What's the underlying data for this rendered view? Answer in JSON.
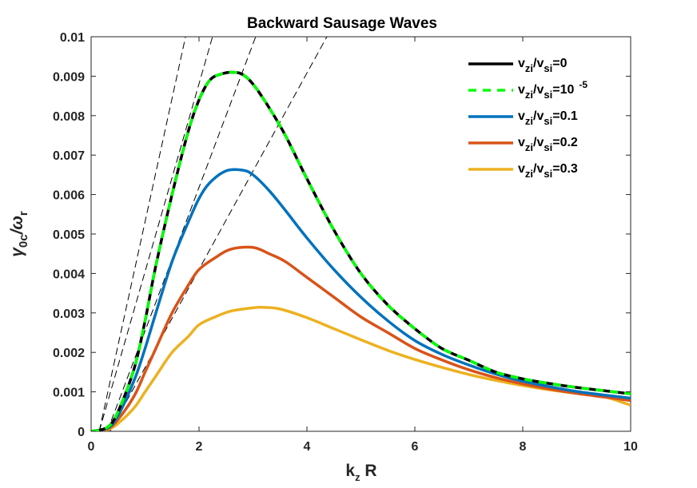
{
  "chart_data": {
    "type": "line",
    "title": "Backward Sausage Waves",
    "xlabel": {
      "main": "k",
      "sub": "z",
      "tail": " R"
    },
    "ylabel": {
      "main": "γ",
      "sub": "0c",
      "mid": "/ω",
      "sub2": "r"
    },
    "xlim": [
      0,
      10
    ],
    "ylim": [
      0,
      0.01
    ],
    "xticks": [
      0,
      2,
      4,
      6,
      8,
      10
    ],
    "xtick_labels": [
      "0",
      "2",
      "4",
      "6",
      "8",
      "10"
    ],
    "yticks": [
      0,
      0.001,
      0.002,
      0.003,
      0.004,
      0.005,
      0.006,
      0.007,
      0.008,
      0.009,
      0.01
    ],
    "ytick_labels": [
      "0",
      "0.001",
      "0.002",
      "0.003",
      "0.004",
      "0.005",
      "0.006",
      "0.007",
      "0.008",
      "0.009",
      "0.01"
    ],
    "grid": false,
    "legend_position": "top-right",
    "series": [
      {
        "name": "v_zi/v_si=0",
        "legend": {
          "a": "v",
          "s1": "zi",
          "b": "/v",
          "s2": "si",
          "c": "=0",
          "sup": ""
        },
        "color": "#000000",
        "style": "solid",
        "x": [
          0,
          0.3,
          0.5,
          0.8,
          1.0,
          1.2,
          1.5,
          1.8,
          2.0,
          2.2,
          2.4,
          2.6,
          2.8,
          3.0,
          3.3,
          3.6,
          4.0,
          4.5,
          5.0,
          5.5,
          6.0,
          6.5,
          7.0,
          7.5,
          8.0,
          8.5,
          9.0,
          9.5,
          10.0
        ],
        "y": [
          0,
          0.0001,
          0.0005,
          0.0016,
          0.0028,
          0.0042,
          0.006,
          0.0076,
          0.0084,
          0.0089,
          0.00905,
          0.0091,
          0.00905,
          0.0088,
          0.0082,
          0.0075,
          0.0064,
          0.0051,
          0.004,
          0.0032,
          0.0026,
          0.0021,
          0.0018,
          0.0015,
          0.00133,
          0.00121,
          0.00111,
          0.00103,
          0.00095
        ]
      },
      {
        "name": "v_zi/v_si=10^-5",
        "legend": {
          "a": "v",
          "s1": "zi",
          "b": "/v",
          "s2": "si",
          "c": "=10",
          "sup": "-5"
        },
        "color": "#00ff00",
        "style": "dashed",
        "x": [
          0,
          0.3,
          0.5,
          0.8,
          1.0,
          1.2,
          1.5,
          1.8,
          2.0,
          2.2,
          2.4,
          2.6,
          2.8,
          3.0,
          3.3,
          3.6,
          4.0,
          4.5,
          5.0,
          5.5,
          6.0,
          6.5,
          7.0,
          7.5,
          8.0,
          8.5,
          9.0,
          9.5,
          10.0
        ],
        "y": [
          0,
          0.0001,
          0.0005,
          0.0016,
          0.0028,
          0.0042,
          0.006,
          0.0076,
          0.0084,
          0.0089,
          0.00905,
          0.0091,
          0.00905,
          0.0088,
          0.0082,
          0.0075,
          0.0064,
          0.0051,
          0.004,
          0.0032,
          0.0026,
          0.0021,
          0.0018,
          0.0015,
          0.00133,
          0.00121,
          0.00111,
          0.00103,
          0.00095
        ]
      },
      {
        "name": "v_zi/v_si=0.1",
        "legend": {
          "a": "v",
          "s1": "zi",
          "b": "/v",
          "s2": "si",
          "c": "=0.1",
          "sup": ""
        },
        "color": "#0072bd",
        "style": "solid",
        "x": [
          0,
          0.3,
          0.5,
          0.8,
          1.0,
          1.2,
          1.5,
          1.8,
          2.0,
          2.2,
          2.5,
          2.8,
          3.0,
          3.3,
          3.6,
          4.0,
          4.5,
          5.0,
          5.5,
          6.0,
          6.5,
          7.0,
          7.5,
          8.0,
          8.5,
          9.0,
          9.5,
          10.0
        ],
        "y": [
          0,
          8e-05,
          0.0004,
          0.0013,
          0.0021,
          0.003,
          0.0043,
          0.0053,
          0.0059,
          0.0063,
          0.0066,
          0.00662,
          0.0065,
          0.0061,
          0.0056,
          0.0049,
          0.0041,
          0.0034,
          0.0028,
          0.0023,
          0.00195,
          0.00168,
          0.00145,
          0.00127,
          0.00113,
          0.00101,
          0.00092,
          0.00084
        ]
      },
      {
        "name": "v_zi/v_si=0.2",
        "legend": {
          "a": "v",
          "s1": "zi",
          "b": "/v",
          "s2": "si",
          "c": "=0.2",
          "sup": ""
        },
        "color": "#d95319",
        "style": "solid",
        "x": [
          0,
          0.3,
          0.5,
          0.8,
          1.0,
          1.2,
          1.5,
          1.8,
          2.0,
          2.3,
          2.6,
          3.0,
          3.3,
          3.6,
          4.0,
          4.5,
          5.0,
          5.5,
          6.0,
          6.5,
          7.0,
          7.5,
          8.0,
          8.5,
          9.0,
          9.5,
          10.0
        ],
        "y": [
          0,
          6e-05,
          0.0003,
          0.0009,
          0.0015,
          0.0021,
          0.003,
          0.0037,
          0.0041,
          0.0044,
          0.00462,
          0.00466,
          0.0045,
          0.0043,
          0.0039,
          0.0034,
          0.0029,
          0.0025,
          0.0021,
          0.00181,
          0.00156,
          0.00136,
          0.0012,
          0.00107,
          0.00096,
          0.00087,
          0.00078
        ]
      },
      {
        "name": "v_zi/v_si=0.3",
        "legend": {
          "a": "v",
          "s1": "zi",
          "b": "/v",
          "s2": "si",
          "c": "=0.3",
          "sup": ""
        },
        "color": "#edb120",
        "style": "solid",
        "x": [
          0,
          0.3,
          0.5,
          0.8,
          1.0,
          1.2,
          1.5,
          1.8,
          2.0,
          2.3,
          2.6,
          3.0,
          3.2,
          3.5,
          4.0,
          4.5,
          5.0,
          5.5,
          6.0,
          6.5,
          7.0,
          7.5,
          8.0,
          8.5,
          9.0,
          9.5,
          10.0
        ],
        "y": [
          0,
          4e-05,
          0.0002,
          0.0006,
          0.001,
          0.0014,
          0.002,
          0.0024,
          0.0027,
          0.0029,
          0.00305,
          0.00313,
          0.00314,
          0.0031,
          0.00288,
          0.0026,
          0.00232,
          0.00205,
          0.00182,
          0.00162,
          0.00144,
          0.00129,
          0.00116,
          0.00105,
          0.00096,
          0.00088,
          0.00066
        ]
      }
    ],
    "asymptotes": {
      "color": "#000000",
      "style": "dashed",
      "lines": [
        {
          "x1": 0.15,
          "y1": 0,
          "x2": 1.75,
          "y2": 0.01
        },
        {
          "x1": 0.15,
          "y1": 0,
          "x2": 2.25,
          "y2": 0.01
        },
        {
          "x1": 0.3,
          "y1": 0,
          "x2": 3.05,
          "y2": 0.01
        },
        {
          "x1": 0.35,
          "y1": 0,
          "x2": 4.45,
          "y2": 0.0102
        }
      ]
    }
  }
}
